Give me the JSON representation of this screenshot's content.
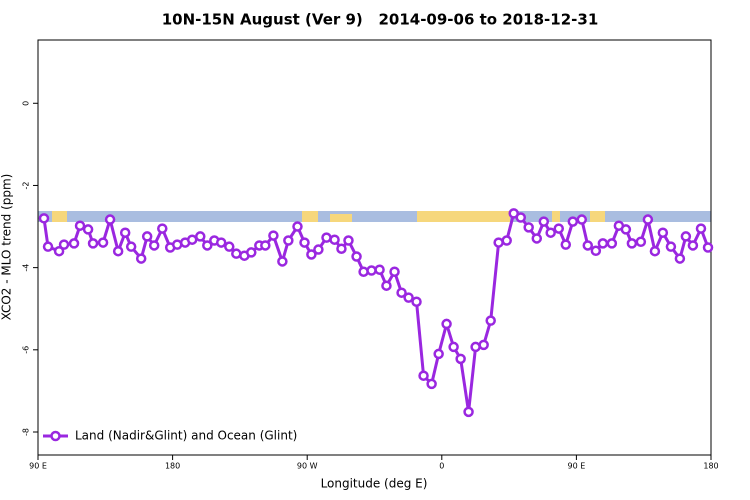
{
  "chart_data": {
    "type": "line",
    "title": "10N-15N August (Ver 9)   2014-09-06 to 2018-12-31",
    "x_label": "Longitude (deg E)",
    "y_label": "XCO2 - MLO trend (ppm)",
    "xlim": [
      90,
      540
    ],
    "ylim": [
      -8.56,
      1.54
    ],
    "xticks": [
      {
        "value": 90,
        "label": "90 E"
      },
      180,
      {
        "value": 270,
        "label": "90 W"
      },
      {
        "value": 360,
        "label": "0"
      },
      {
        "value": 450,
        "label": "90 E"
      },
      {
        "value": 540,
        "label": "180"
      }
    ],
    "yticks": [
      0,
      -2,
      -4,
      -6,
      -8
    ],
    "legend": "bottom-left",
    "x": [
      94,
      96.7,
      104.1,
      107.4,
      114.1,
      118.1,
      123.5,
      126.8,
      133.5,
      138.2,
      143.6,
      148.3,
      152.3,
      159,
      163,
      167.7,
      173.1,
      178.4,
      183.1,
      188.4,
      193.1,
      198.5,
      203.2,
      207.9,
      212.5,
      217.9,
      222.6,
      228,
      232.6,
      238,
      242,
      247.4,
      253.4,
      257.4,
      263.5,
      268.2,
      272.8,
      277.5,
      282.9,
      288.3,
      292.9,
      297.6,
      303,
      307.7,
      313,
      318.4,
      323,
      328.4,
      333.1,
      337.8,
      343.1,
      347.8,
      353.2,
      357.9,
      363.2,
      367.9,
      372.6,
      377.9,
      382.6,
      388,
      392.7,
      398,
      403.4,
      408.1,
      412.8,
      418.1,
      423.5,
      428.2,
      432.8,
      438.2,
      442.9,
      447.6,
      453.6,
      457.6,
      463,
      467.7,
      473.7,
      478.4,
      483.1,
      487.1,
      493.1,
      497.8,
      502.5,
      507.8,
      513.2,
      519.2,
      523.2,
      527.9,
      533.3,
      538
    ],
    "series": [
      {
        "name": "Land (Nadir&Glint) and Ocean (Glint)",
        "color": "#9a27e0",
        "values": [
          -2.8,
          -3.49,
          -3.6,
          -3.44,
          -3.41,
          -2.98,
          -3.07,
          -3.41,
          -3.39,
          -2.83,
          -3.6,
          -3.15,
          -3.49,
          -3.78,
          -3.24,
          -3.46,
          -3.05,
          -3.51,
          -3.44,
          -3.39,
          -3.32,
          -3.24,
          -3.46,
          -3.34,
          -3.39,
          -3.49,
          -3.66,
          -3.71,
          -3.63,
          -3.46,
          -3.46,
          -3.22,
          -3.85,
          -3.34,
          -3.0,
          -3.39,
          -3.68,
          -3.56,
          -3.27,
          -3.32,
          -3.54,
          -3.34,
          -3.73,
          -4.1,
          -4.07,
          -4.05,
          -4.44,
          -4.1,
          -4.61,
          -4.73,
          -4.83,
          -6.63,
          -6.83,
          -6.1,
          -5.37,
          -5.93,
          -6.22,
          -7.51,
          -5.93,
          -5.88,
          -5.29,
          -3.39,
          -3.34,
          -2.68,
          -2.78,
          -3.02,
          -3.29,
          -2.88,
          -3.15,
          -3.05,
          -3.44,
          -2.88,
          -2.83,
          -3.46,
          -3.59,
          -3.41,
          -3.41,
          -2.98,
          -3.07,
          -3.41,
          -3.37,
          -2.83,
          -3.6,
          -3.15,
          -3.49,
          -3.78,
          -3.24,
          -3.46,
          -3.05,
          -3.51
        ]
      }
    ]
  }
}
